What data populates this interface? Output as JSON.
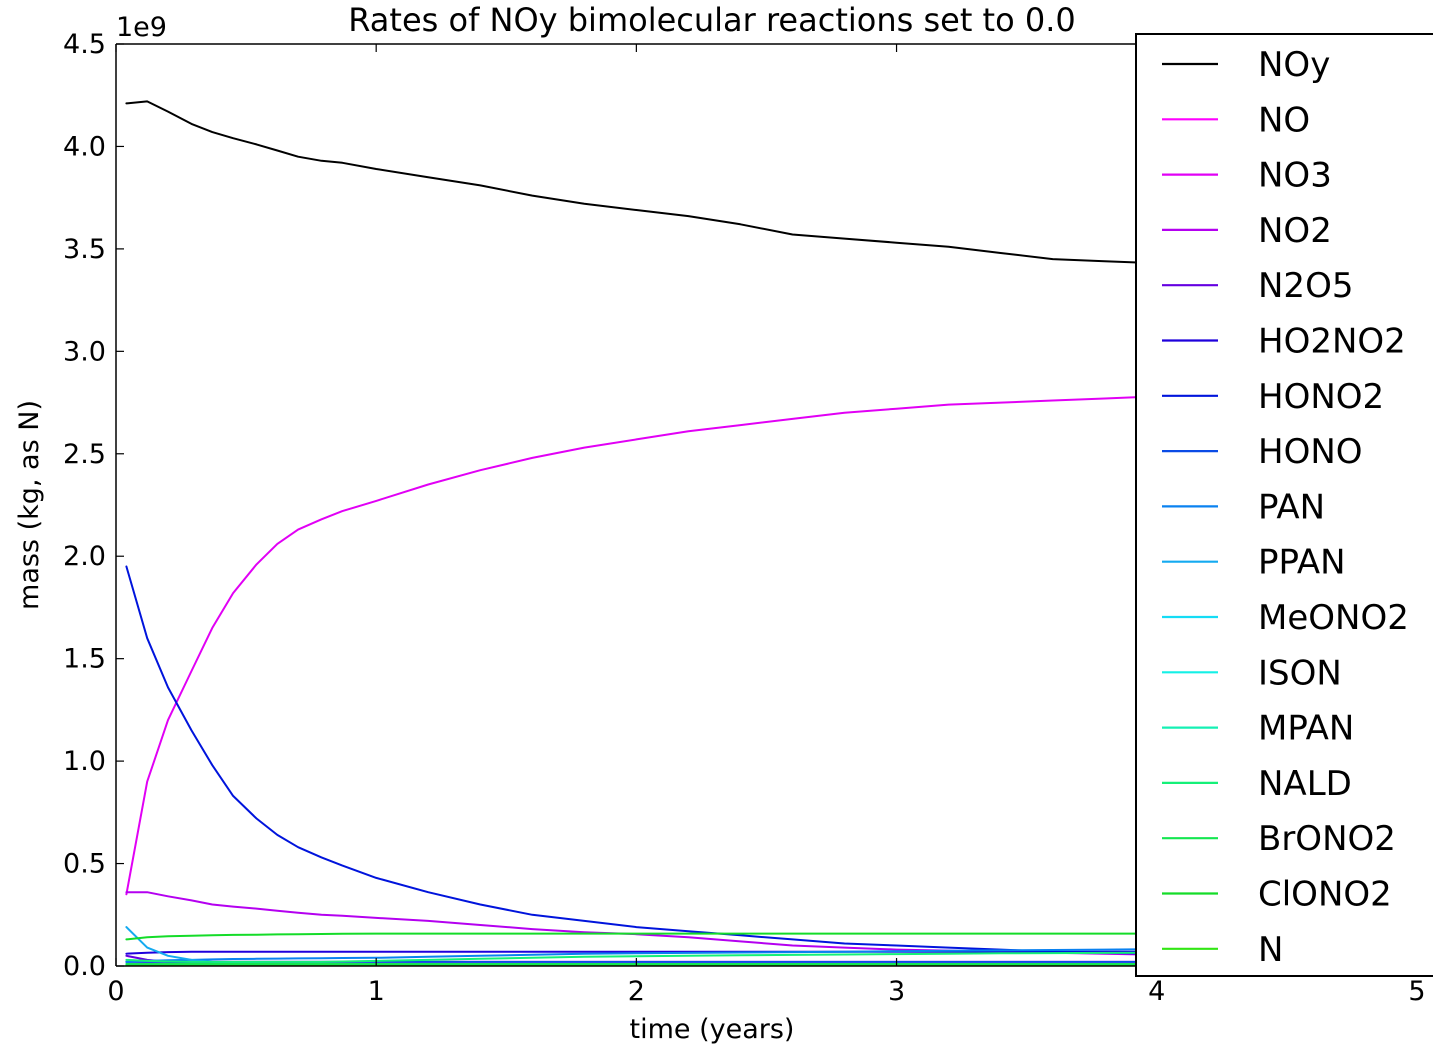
{
  "chart_data": {
    "type": "line",
    "title": "Rates of NOy bimolecular reactions set to 0.0",
    "xlabel": "time (years)",
    "ylabel": "mass (kg, as N)",
    "y_offset_label": "1e9",
    "xlim": [
      0,
      5.5
    ],
    "ylim": [
      0,
      4.5
    ],
    "x_ticks": [
      0,
      1,
      2,
      3,
      4,
      5
    ],
    "x_tick_labels": [
      "0",
      "1",
      "2",
      "3",
      "4",
      "5"
    ],
    "y_ticks": [
      0,
      0.5,
      1,
      1.5,
      2,
      2.5,
      3,
      3.5,
      4,
      4.5
    ],
    "y_tick_labels": [
      "0.0",
      "0.5",
      "1.0",
      "1.5",
      "2.0",
      "2.5",
      "3.0",
      "3.5",
      "4.0",
      "4.5"
    ],
    "grid": false,
    "legend_position": "right",
    "x": [
      0.04,
      0.12,
      0.2,
      0.29,
      0.37,
      0.45,
      0.54,
      0.62,
      0.7,
      0.79,
      0.87,
      1.0,
      1.2,
      1.4,
      1.6,
      1.8,
      2.0,
      2.2,
      2.4,
      2.6,
      2.8,
      3.0,
      3.2,
      3.4,
      3.6,
      3.8,
      4.0,
      4.2,
      4.3
    ],
    "series": [
      {
        "name": "NOy",
        "color": "#000000",
        "values": [
          4.21,
          4.22,
          4.17,
          4.11,
          4.07,
          4.04,
          4.01,
          3.98,
          3.95,
          3.93,
          3.92,
          3.89,
          3.85,
          3.81,
          3.76,
          3.72,
          3.69,
          3.66,
          3.62,
          3.57,
          3.55,
          3.53,
          3.51,
          3.48,
          3.45,
          3.44,
          3.43,
          3.42,
          3.41
        ]
      },
      {
        "name": "NO",
        "color": "#ff00ff",
        "values": [
          0.02,
          0.02,
          0.02,
          0.02,
          0.02,
          0.02,
          0.02,
          0.02,
          0.02,
          0.02,
          0.02,
          0.02,
          0.02,
          0.02,
          0.02,
          0.02,
          0.02,
          0.02,
          0.02,
          0.02,
          0.02,
          0.02,
          0.02,
          0.02,
          0.02,
          0.02,
          0.02,
          0.02,
          0.02
        ]
      },
      {
        "name": "NO3",
        "color": "#e100f5",
        "values": [
          0.35,
          0.9,
          1.2,
          1.44,
          1.65,
          1.82,
          1.96,
          2.06,
          2.13,
          2.18,
          2.22,
          2.27,
          2.35,
          2.42,
          2.48,
          2.53,
          2.57,
          2.61,
          2.64,
          2.67,
          2.7,
          2.72,
          2.74,
          2.75,
          2.76,
          2.77,
          2.78,
          2.79,
          2.79
        ]
      },
      {
        "name": "NO2",
        "color": "#b400f0",
        "values": [
          0.36,
          0.36,
          0.34,
          0.32,
          0.3,
          0.29,
          0.28,
          0.27,
          0.26,
          0.25,
          0.245,
          0.235,
          0.22,
          0.2,
          0.18,
          0.165,
          0.155,
          0.14,
          0.12,
          0.1,
          0.09,
          0.08,
          0.075,
          0.07,
          0.065,
          0.06,
          0.055,
          0.05,
          0.05
        ]
      },
      {
        "name": "N2O5",
        "color": "#6400e1",
        "values": [
          0.05,
          0.03,
          0.02,
          0.015,
          0.012,
          0.01,
          0.01,
          0.01,
          0.01,
          0.01,
          0.01,
          0.01,
          0.01,
          0.01,
          0.01,
          0.01,
          0.01,
          0.01,
          0.01,
          0.01,
          0.01,
          0.01,
          0.01,
          0.01,
          0.01,
          0.01,
          0.01,
          0.01,
          0.01
        ]
      },
      {
        "name": "HO2NO2",
        "color": "#1e00dc",
        "values": [
          0.06,
          0.065,
          0.068,
          0.07,
          0.07,
          0.07,
          0.07,
          0.07,
          0.07,
          0.07,
          0.07,
          0.07,
          0.07,
          0.07,
          0.07,
          0.07,
          0.07,
          0.07,
          0.07,
          0.07,
          0.07,
          0.07,
          0.07,
          0.07,
          0.07,
          0.07,
          0.07,
          0.07,
          0.07
        ]
      },
      {
        "name": "HONO2",
        "color": "#0014dc",
        "values": [
          1.95,
          1.6,
          1.36,
          1.15,
          0.98,
          0.83,
          0.72,
          0.64,
          0.58,
          0.53,
          0.49,
          0.43,
          0.36,
          0.3,
          0.25,
          0.22,
          0.19,
          0.17,
          0.15,
          0.13,
          0.11,
          0.1,
          0.09,
          0.08,
          0.07,
          0.065,
          0.06,
          0.06,
          0.06
        ]
      },
      {
        "name": "HONO",
        "color": "#0a4be6",
        "values": [
          0.02,
          0.02,
          0.02,
          0.02,
          0.02,
          0.02,
          0.02,
          0.02,
          0.02,
          0.02,
          0.02,
          0.02,
          0.02,
          0.02,
          0.02,
          0.02,
          0.02,
          0.02,
          0.02,
          0.02,
          0.02,
          0.02,
          0.02,
          0.02,
          0.02,
          0.02,
          0.02,
          0.02,
          0.02
        ]
      },
      {
        "name": "PAN",
        "color": "#0a82f0",
        "values": [
          0.02,
          0.025,
          0.028,
          0.03,
          0.032,
          0.034,
          0.035,
          0.036,
          0.037,
          0.038,
          0.039,
          0.04,
          0.045,
          0.05,
          0.055,
          0.06,
          0.062,
          0.064,
          0.066,
          0.068,
          0.07,
          0.072,
          0.074,
          0.076,
          0.078,
          0.08,
          0.082,
          0.083,
          0.084
        ]
      },
      {
        "name": "PPAN",
        "color": "#14aaf0",
        "values": [
          0.19,
          0.09,
          0.05,
          0.03,
          0.02,
          0.015,
          0.012,
          0.01,
          0.01,
          0.01,
          0.01,
          0.01,
          0.01,
          0.01,
          0.01,
          0.01,
          0.01,
          0.01,
          0.01,
          0.01,
          0.01,
          0.01,
          0.01,
          0.01,
          0.01,
          0.01,
          0.01,
          0.01,
          0.01
        ]
      },
      {
        "name": "MeONO2",
        "color": "#14dcf5",
        "values": [
          0.01,
          0.01,
          0.01,
          0.01,
          0.01,
          0.01,
          0.01,
          0.01,
          0.01,
          0.01,
          0.01,
          0.01,
          0.01,
          0.01,
          0.01,
          0.01,
          0.01,
          0.01,
          0.01,
          0.01,
          0.01,
          0.01,
          0.01,
          0.01,
          0.01,
          0.01,
          0.01,
          0.01,
          0.01
        ]
      },
      {
        "name": "ISON",
        "color": "#14f0e6",
        "values": [
          0.005,
          0.005,
          0.005,
          0.005,
          0.005,
          0.005,
          0.005,
          0.005,
          0.005,
          0.005,
          0.005,
          0.005,
          0.005,
          0.005,
          0.005,
          0.005,
          0.005,
          0.005,
          0.005,
          0.005,
          0.005,
          0.005,
          0.005,
          0.005,
          0.005,
          0.005,
          0.005,
          0.005,
          0.005
        ]
      },
      {
        "name": "MPAN",
        "color": "#14f0b4",
        "values": [
          0.005,
          0.005,
          0.005,
          0.005,
          0.005,
          0.005,
          0.005,
          0.005,
          0.005,
          0.005,
          0.005,
          0.005,
          0.005,
          0.005,
          0.005,
          0.005,
          0.005,
          0.005,
          0.005,
          0.005,
          0.005,
          0.005,
          0.005,
          0.005,
          0.005,
          0.005,
          0.005,
          0.005,
          0.005
        ]
      },
      {
        "name": "NALD",
        "color": "#14f078",
        "values": [
          0.03,
          0.025,
          0.022,
          0.02,
          0.02,
          0.02,
          0.02,
          0.02,
          0.02,
          0.02,
          0.022,
          0.025,
          0.03,
          0.035,
          0.04,
          0.045,
          0.048,
          0.05,
          0.052,
          0.054,
          0.056,
          0.058,
          0.06,
          0.062,
          0.063,
          0.064,
          0.065,
          0.066,
          0.066
        ]
      },
      {
        "name": "BrONO2",
        "color": "#14e650",
        "values": [
          0.01,
          0.01,
          0.01,
          0.01,
          0.01,
          0.01,
          0.01,
          0.01,
          0.01,
          0.01,
          0.01,
          0.01,
          0.01,
          0.01,
          0.01,
          0.01,
          0.01,
          0.01,
          0.01,
          0.01,
          0.01,
          0.01,
          0.01,
          0.01,
          0.01,
          0.01,
          0.01,
          0.01,
          0.01
        ]
      },
      {
        "name": "ClONO2",
        "color": "#14dc28",
        "values": [
          0.13,
          0.14,
          0.145,
          0.148,
          0.15,
          0.152,
          0.153,
          0.154,
          0.155,
          0.156,
          0.157,
          0.158,
          0.158,
          0.158,
          0.158,
          0.158,
          0.158,
          0.158,
          0.158,
          0.158,
          0.158,
          0.158,
          0.158,
          0.158,
          0.158,
          0.158,
          0.158,
          0.158,
          0.158
        ]
      },
      {
        "name": "N",
        "color": "#32e614",
        "values": [
          0.0,
          0.0,
          0.0,
          0.0,
          0.0,
          0.0,
          0.0,
          0.0,
          0.0,
          0.0,
          0.0,
          0.0,
          0.0,
          0.0,
          0.0,
          0.0,
          0.0,
          0.0,
          0.0,
          0.0,
          0.0,
          0.0,
          0.0,
          0.0,
          0.0,
          0.0,
          0.0,
          0.0,
          0.0
        ]
      }
    ]
  }
}
